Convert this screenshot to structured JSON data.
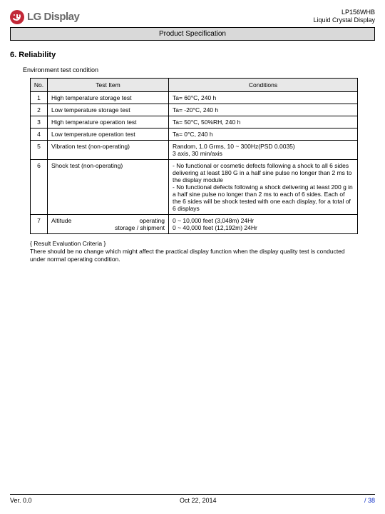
{
  "header": {
    "logo_text": "LG Display",
    "model": "LP156WHB",
    "product": "Liquid Crystal Display",
    "spec_bar": "Product Specification"
  },
  "section": {
    "number_title": "6. Reliability",
    "env_label": "Environment test condition"
  },
  "table": {
    "headers": {
      "no": "No.",
      "item": "Test Item",
      "cond": "Conditions"
    },
    "rows": [
      {
        "no": "1",
        "item": "High temperature storage test",
        "cond": "Ta= 60°C, 240 h"
      },
      {
        "no": "2",
        "item": "Low temperature storage test",
        "cond": "Ta= -20°C, 240 h"
      },
      {
        "no": "3",
        "item": "High temperature operation test",
        "cond": "Ta= 50°C, 50%RH, 240 h"
      },
      {
        "no": "4",
        "item": "Low temperature operation test",
        "cond": "Ta= 0°C, 240 h"
      },
      {
        "no": "5",
        "item": "Vibration test (non-operating)",
        "cond": "Random, 1.0 Grms, 10 ~ 300Hz(PSD 0.0035)\n3 axis, 30 min/axis"
      },
      {
        "no": "6",
        "item": "Shock test (non-operating)",
        "cond": "- No functional or cosmetic defects following a shock to all 6 sides delivering at least 180 G in a half sine pulse no longer than 2 ms to the display module\n- No functional defects following a shock delivering at least 200 g in a half sine pulse no longer than 2 ms to each of 6 sides. Each of the 6 sides will be shock tested with one each display, for a total of 6 displays"
      },
      {
        "no": "7",
        "item_left": "Altitude",
        "item_right1": "operating",
        "item_right2": "storage / shipment",
        "cond": "0 ~ 10,000 feet (3,048m) 24Hr\n0 ~ 40,000 feet (12,192m) 24Hr"
      }
    ]
  },
  "criteria": {
    "title": "{ Result Evaluation Criteria }",
    "body": "There should be no change which might affect the practical display function when the display quality test is conducted under normal operating condition."
  },
  "footer": {
    "version": "Ver. 0.0",
    "date": "Oct 22, 2014",
    "page": "/ 38"
  },
  "colors": {
    "logo_circle": "#c22938",
    "logo_text": "#6a6a6a",
    "bar_bg": "#d9d9d9",
    "th_bg": "#e8e8e8",
    "page_link": "#1030c8"
  }
}
